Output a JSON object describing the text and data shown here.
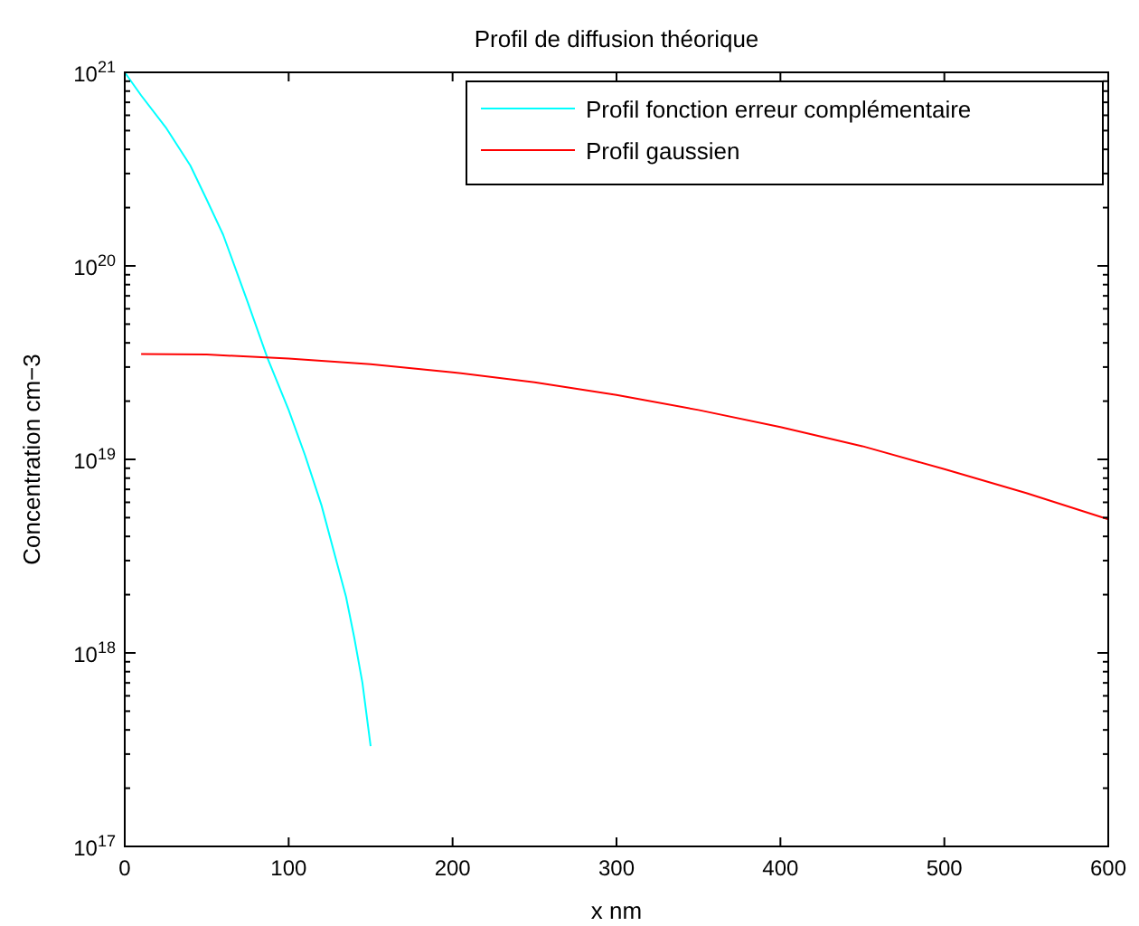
{
  "chart_data": {
    "type": "line",
    "title": "Profil de diffusion théorique",
    "xlabel": "x nm",
    "ylabel": "Concentration cm−3",
    "log": "y",
    "xlim": [
      0,
      600
    ],
    "xticks": [
      0,
      100,
      200,
      300,
      400,
      500,
      600
    ],
    "ylim": [
      1e+17,
      1e+21
    ],
    "yticks": [
      {
        "value": 1e+17,
        "label": "10$^{17}$"
      },
      {
        "value": 1e+18,
        "label": "10$^{18}$"
      },
      {
        "value": 1e+19,
        "label": "10$^{19}$"
      },
      {
        "value": 1e+20,
        "label": "10$^{20}$"
      },
      {
        "value": 1e+21,
        "label": "10$^{21}$"
      }
    ],
    "grid": false,
    "legend": "top right",
    "marker": "none",
    "line_style": "solid",
    "series": [
      {
        "name": "Profil fonction erreur complémentaire",
        "color": "#00ffff",
        "x": [
          0,
          10,
          25,
          40,
          50,
          60,
          75,
          87,
          100,
          110,
          120,
          130,
          135,
          140,
          145,
          150
        ],
        "values": [
          1e+21,
          7.6e+20,
          5.2e+20,
          3.3e+20,
          2.2e+20,
          1.45e+20,
          6.5e+19,
          3.35e+19,
          1.8e+19,
          1.05e+19,
          5.8e+18,
          2.8e+18,
          1.95e+18,
          1.2e+18,
          7e+17,
          3.3e+17
        ]
      },
      {
        "name": "Profil gaussien",
        "color": "#ff0000",
        "x": [
          10,
          50,
          100,
          150,
          200,
          250,
          300,
          350,
          400,
          450,
          500,
          550,
          600
        ],
        "values": [
          3.5e+19,
          3.48e+19,
          3.32e+19,
          3.1e+19,
          2.82e+19,
          2.5e+19,
          2.15e+19,
          1.8e+19,
          1.47e+19,
          1.17e+19,
          8.9e+18,
          6.7e+18,
          4.9e+18
        ]
      }
    ]
  }
}
